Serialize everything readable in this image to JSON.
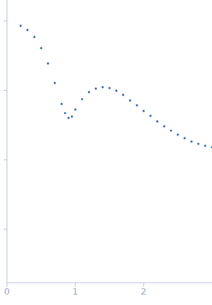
{
  "chart_data": {
    "type": "scatter",
    "x": [
      0.2,
      0.3,
      0.4,
      0.5,
      0.6,
      0.7,
      0.8,
      0.85,
      0.9,
      0.95,
      1.0,
      1.1,
      1.2,
      1.3,
      1.4,
      1.5,
      1.6,
      1.7,
      1.8,
      1.9,
      2.0,
      2.1,
      2.2,
      2.3,
      2.4,
      2.5,
      2.6,
      2.7,
      2.8,
      2.9,
      3.0
    ],
    "values": [
      0.851,
      0.74,
      0.587,
      0.406,
      0.244,
      0.128,
      0.0637,
      0.0471,
      0.0401,
      0.042,
      0.053,
      0.0748,
      0.0944,
      0.106,
      0.111,
      0.108,
      0.0989,
      0.0861,
      0.0715,
      0.0608,
      0.0506,
      0.043,
      0.0357,
      0.0304,
      0.0264,
      0.023,
      0.0205,
      0.0183,
      0.017,
      0.0159,
      0.0152
    ],
    "color": "#3a66b8",
    "marker": "circle",
    "log": "y",
    "xlim": [
      0,
      3
    ],
    "xticks": [
      0,
      1,
      2
    ],
    "ylim": [
      0.00017,
      2
    ],
    "yticks": [
      0.001,
      0.01,
      0.1,
      1
    ],
    "tick_labels": "x",
    "grid": false
  }
}
